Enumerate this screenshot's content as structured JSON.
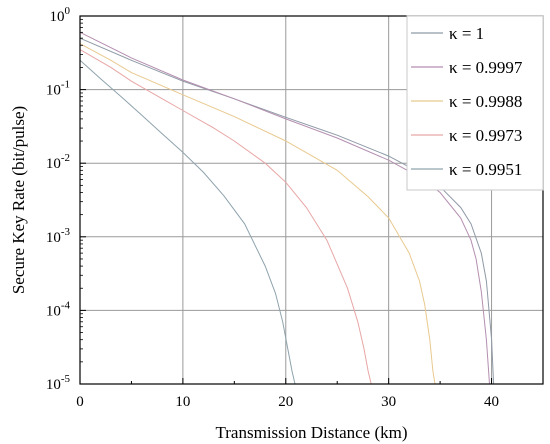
{
  "chart_data": {
    "type": "line",
    "xlabel": "Transmission  Distance (km)",
    "ylabel": "Secure Key Rate (bit/pulse)",
    "xlim": [
      0,
      45
    ],
    "ylim": [
      1e-05,
      1
    ],
    "yscale": "log",
    "grid": true,
    "legend_position": "top-right",
    "x_ticks": [
      0,
      10,
      20,
      30,
      40
    ],
    "y_ticks": [
      {
        "value": 1e-05,
        "base": "10",
        "exp": "-5"
      },
      {
        "value": 0.0001,
        "base": "10",
        "exp": "-4"
      },
      {
        "value": 0.001,
        "base": "10",
        "exp": "-3"
      },
      {
        "value": 0.01,
        "base": "10",
        "exp": "-2"
      },
      {
        "value": 0.1,
        "base": "10",
        "exp": "-1"
      },
      {
        "value": 1,
        "base": "10",
        "exp": "0"
      }
    ],
    "series": [
      {
        "name": "κ = 1",
        "color": "#8e9aa6",
        "x": [
          0,
          5,
          10,
          15,
          20,
          25,
          30,
          33,
          35,
          37,
          38,
          39,
          39.5,
          40,
          40.2
        ],
        "y": [
          0.5,
          0.25,
          0.13,
          0.075,
          0.042,
          0.024,
          0.0125,
          0.0075,
          0.0048,
          0.0025,
          0.0015,
          0.0006,
          0.00025,
          4e-05,
          1e-05
        ]
      },
      {
        "name": "κ = 0.9997",
        "color": "#b48fb0",
        "x": [
          0,
          5,
          10,
          15,
          20,
          25,
          30,
          33,
          35,
          37,
          38,
          38.5,
          39,
          39.5,
          39.8
        ],
        "y": [
          0.6,
          0.27,
          0.135,
          0.075,
          0.04,
          0.022,
          0.011,
          0.0065,
          0.004,
          0.0018,
          0.0009,
          0.0005,
          0.00018,
          4e-05,
          1e-05
        ]
      },
      {
        "name": "κ = 0.9988",
        "color": "#e8c98f",
        "x": [
          0,
          3,
          5,
          10,
          15,
          20,
          25,
          28,
          30,
          32,
          33,
          33.5,
          34,
          34.3,
          34.5
        ],
        "y": [
          0.42,
          0.25,
          0.17,
          0.085,
          0.043,
          0.02,
          0.008,
          0.0035,
          0.0018,
          0.0006,
          0.00025,
          0.00012,
          4e-05,
          1.5e-05,
          1e-05
        ]
      },
      {
        "name": "κ = 0.9973",
        "color": "#e8a6a6",
        "x": [
          0,
          3,
          5,
          8,
          10,
          13,
          15,
          18,
          20,
          22,
          24,
          26,
          27,
          27.6,
          28,
          28.3
        ],
        "y": [
          0.35,
          0.2,
          0.13,
          0.075,
          0.052,
          0.03,
          0.02,
          0.01,
          0.0055,
          0.0025,
          0.0009,
          0.0002,
          7e-05,
          3e-05,
          1.5e-05,
          1e-05
        ]
      },
      {
        "name": "κ = 0.9951",
        "color": "#8fa3ad",
        "x": [
          0,
          2,
          4,
          6,
          8,
          10,
          12,
          14,
          16,
          18,
          19,
          19.7,
          20.2,
          20.6,
          20.9
        ],
        "y": [
          0.25,
          0.14,
          0.08,
          0.045,
          0.025,
          0.014,
          0.0075,
          0.0036,
          0.0015,
          0.0004,
          0.00017,
          7e-05,
          3e-05,
          1.5e-05,
          1e-05
        ]
      }
    ]
  }
}
